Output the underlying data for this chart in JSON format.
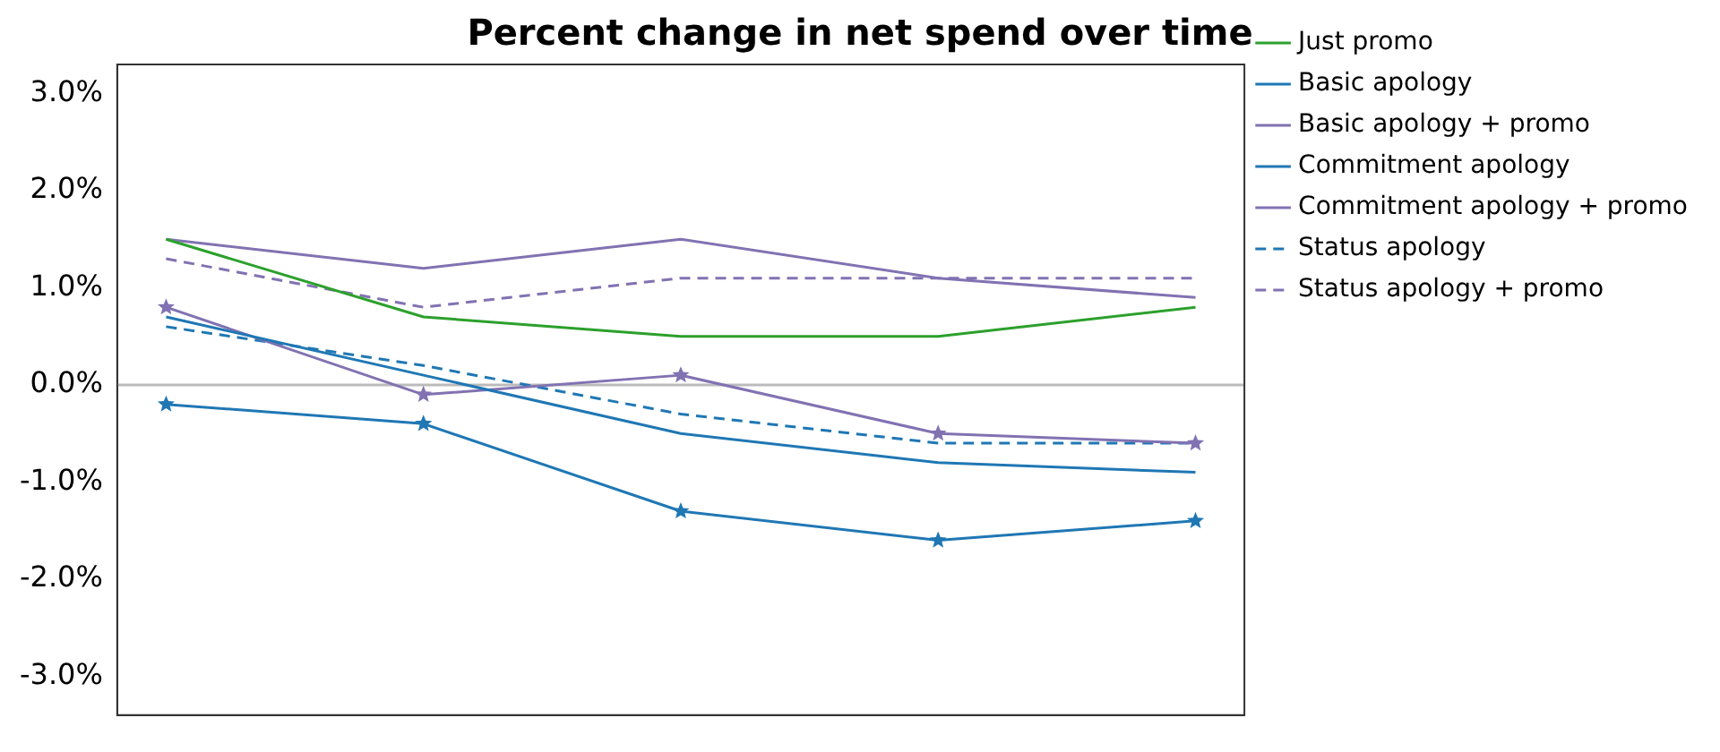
{
  "chart_data": {
    "type": "line",
    "title": "Percent change in net spend over time",
    "categories": [
      null,
      null,
      null,
      null,
      null
    ],
    "series": [
      {
        "name": "Just promo",
        "color": "#2ca02c",
        "values": [
          1.5,
          0.7,
          0.5,
          0.5,
          0.8
        ],
        "marker": "none",
        "line_style": "solid"
      },
      {
        "name": "Basic apology",
        "color": "#1f77b4",
        "values": [
          0.7,
          0.1,
          -0.5,
          -0.8,
          -0.9
        ],
        "marker": "none",
        "line_style": "solid"
      },
      {
        "name": "Basic apology + promo",
        "color": "#8172b2",
        "values": [
          1.5,
          1.2,
          1.5,
          1.1,
          0.9
        ],
        "marker": "none",
        "line_style": "solid"
      },
      {
        "name": "Commitment apology",
        "color": "#1f77b4",
        "values": [
          -0.2,
          -0.4,
          -1.3,
          -1.6,
          -1.4
        ],
        "marker": "star",
        "line_style": "solid"
      },
      {
        "name": "Commitment apology + promo",
        "color": "#8172b2",
        "values": [
          0.8,
          -0.1,
          0.1,
          -0.5,
          -0.6
        ],
        "marker": "star",
        "line_style": "solid"
      },
      {
        "name": "Status apology",
        "color": "#1f77b4",
        "values": [
          0.6,
          0.2,
          -0.3,
          -0.6,
          -0.6
        ],
        "marker": "none",
        "line_style": "dashed"
      },
      {
        "name": "Status apology + promo",
        "color": "#8172b2",
        "values": [
          1.3,
          0.8,
          1.1,
          1.1,
          1.1
        ],
        "marker": "none",
        "line_style": "dashed"
      }
    ],
    "ylim": [
      -3.4,
      3.3
    ],
    "yticks": [
      {
        "value": -3,
        "label": "-3.0%"
      },
      {
        "value": -2,
        "label": "-2.0%"
      },
      {
        "value": -1,
        "label": "-1.0%"
      },
      {
        "value": 0,
        "label": "0.0%"
      },
      {
        "value": 1,
        "label": "1.0%"
      },
      {
        "value": 2,
        "label": "2.0%"
      },
      {
        "value": 3,
        "label": "3.0%"
      }
    ],
    "ref_lines": [
      {
        "axis": "y",
        "value": 0,
        "color": "#bbbbbb"
      }
    ],
    "grid": false,
    "legend": "right",
    "tick_labels": "y"
  }
}
